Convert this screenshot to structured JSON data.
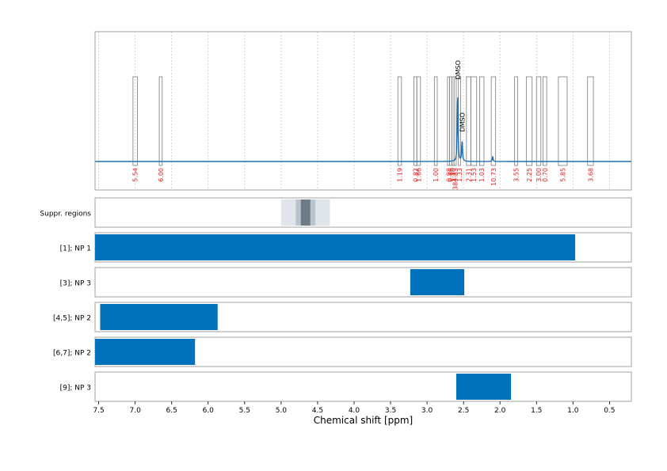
{
  "chart_data": [
    {
      "type": "line",
      "panel": "spectrum",
      "title": "",
      "xlabel": "Chemical shift [ppm]",
      "ylabel": "",
      "xlim": [
        7.55,
        0.2
      ],
      "x_reversed": true,
      "grid": {
        "x": true,
        "y": false
      },
      "baseline_color": "#1f6fb2",
      "peaks": [
        {
          "x": 2.58,
          "height": 0.85,
          "label": "DMSO"
        },
        {
          "x": 2.52,
          "height": 0.25,
          "label": "DMSO"
        },
        {
          "x": 2.1,
          "height": 0.06,
          "label": ""
        }
      ],
      "integration_regions": [
        {
          "x_start": 7.03,
          "x_end": 6.97,
          "value": "5.54"
        },
        {
          "x_start": 6.67,
          "x_end": 6.63,
          "value": "6.00"
        },
        {
          "x_start": 3.4,
          "x_end": 3.35,
          "value": "1.19"
        },
        {
          "x_start": 3.18,
          "x_end": 3.14,
          "value": "0.82"
        },
        {
          "x_start": 3.14,
          "x_end": 3.09,
          "value": "1.66"
        },
        {
          "x_start": 2.9,
          "x_end": 2.86,
          "value": "1.00"
        },
        {
          "x_start": 2.72,
          "x_end": 2.69,
          "value": "0.98"
        },
        {
          "x_start": 2.69,
          "x_end": 2.66,
          "value": "0.66"
        },
        {
          "x_start": 2.66,
          "x_end": 2.63,
          "value": "1.10"
        },
        {
          "x_start": 2.63,
          "x_end": 2.6,
          "value": "384.83"
        },
        {
          "x_start": 2.57,
          "x_end": 2.54,
          "value": "1.33"
        },
        {
          "x_start": 2.46,
          "x_end": 2.4,
          "value": "2.31"
        },
        {
          "x_start": 2.4,
          "x_end": 2.32,
          "value": "1.53"
        },
        {
          "x_start": 2.28,
          "x_end": 2.22,
          "value": "1.03"
        },
        {
          "x_start": 2.12,
          "x_end": 2.06,
          "value": "10.73"
        },
        {
          "x_start": 1.8,
          "x_end": 1.76,
          "value": "3.55"
        },
        {
          "x_start": 1.64,
          "x_end": 1.56,
          "value": "2.25"
        },
        {
          "x_start": 1.5,
          "x_end": 1.44,
          "value": "3.00"
        },
        {
          "x_start": 1.41,
          "x_end": 1.36,
          "value": "0.70"
        },
        {
          "x_start": 1.2,
          "x_end": 1.08,
          "value": "5.85"
        },
        {
          "x_start": 0.8,
          "x_end": 0.72,
          "value": "3.68"
        }
      ]
    },
    {
      "type": "bar",
      "orientation": "horizontal",
      "panel": "regions",
      "xlabel": "Chemical shift [ppm]",
      "xlim": [
        7.55,
        0.2
      ],
      "x_ticks": [
        "7.5",
        "7.0",
        "6.5",
        "6.0",
        "5.5",
        "5.0",
        "4.5",
        "4.0",
        "3.5",
        "3.0",
        "2.5",
        "2.0",
        "1.5",
        "1.0",
        "0.5"
      ],
      "x_tick_values": [
        7.5,
        7.0,
        6.5,
        6.0,
        5.5,
        5.0,
        4.5,
        4.0,
        3.5,
        3.0,
        2.5,
        2.0,
        1.5,
        1.0,
        0.5
      ],
      "bar_color": "#0072bd",
      "suppression": {
        "label": "Suppr. regions",
        "bands": [
          {
            "x_start": 5.0,
            "x_end": 4.33,
            "shade": "#dfe5ea"
          },
          {
            "x_start": 4.8,
            "x_end": 4.53,
            "shade": "#b9c4cc"
          },
          {
            "x_start": 4.73,
            "x_end": 4.6,
            "shade": "#6c7b85"
          }
        ]
      },
      "rows": [
        {
          "label": "[1]; NP 1",
          "x_start": 7.55,
          "x_end": 0.97
        },
        {
          "label": "[3]; NP 3",
          "x_start": 3.23,
          "x_end": 2.49
        },
        {
          "label": "[4,5]; NP 2",
          "x_start": 7.48,
          "x_end": 5.87
        },
        {
          "label": "[6,7]; NP 2",
          "x_start": 7.55,
          "x_end": 6.18
        },
        {
          "label": "[9]; NP 3",
          "x_start": 2.6,
          "x_end": 1.85
        }
      ]
    }
  ]
}
